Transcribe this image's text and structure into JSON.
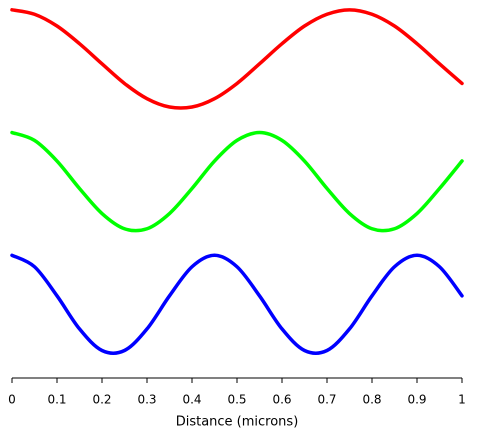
{
  "chart_data": {
    "type": "line",
    "x": [
      0,
      0.05,
      0.1,
      0.15,
      0.2,
      0.25,
      0.3,
      0.35,
      0.4,
      0.45,
      0.5,
      0.55,
      0.6,
      0.65,
      0.7,
      0.75,
      0.8,
      0.85,
      0.9,
      0.95,
      1
    ],
    "series": [
      {
        "color": "#ff0000",
        "values": [
          6,
          5.91,
          5.67,
          5.31,
          4.9,
          4.5,
          4.19,
          4.02,
          4.02,
          4.19,
          4.5,
          4.9,
          5.31,
          5.67,
          5.91,
          6,
          5.91,
          5.67,
          5.31,
          4.9,
          4.5
        ]
      },
      {
        "color": "#00ff00",
        "values": [
          3.5,
          3.34,
          2.92,
          2.36,
          1.85,
          1.54,
          1.54,
          1.85,
          2.36,
          2.92,
          3.34,
          3.5,
          3.34,
          2.92,
          2.36,
          1.85,
          1.54,
          1.54,
          1.85,
          2.36,
          2.92
        ]
      },
      {
        "color": "#0000ff",
        "values": [
          1,
          0.766,
          0.174,
          -0.5,
          -0.94,
          -0.94,
          -0.5,
          0.174,
          0.766,
          1,
          0.766,
          0.174,
          -0.5,
          -0.94,
          -0.94,
          -0.5,
          0.174,
          0.766,
          1,
          0.766,
          0.174
        ]
      }
    ],
    "xlabel": "Distance (microns)",
    "xlim": [
      0,
      1
    ],
    "xticks": [
      0,
      0.1,
      0.2,
      0.3,
      0.4,
      0.5,
      0.6,
      0.7,
      0.8,
      0.9,
      1
    ],
    "ylim": [
      -1.5,
      6.2
    ]
  }
}
